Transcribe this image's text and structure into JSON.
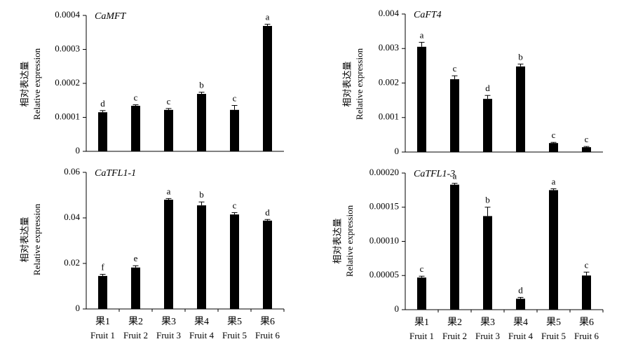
{
  "chart_data": [
    {
      "type": "bar",
      "title": "CaMFT",
      "ylabel": "相对表达量",
      "ylabel_sub": "Relative expression",
      "categories": [
        null,
        null,
        null,
        null,
        null,
        null
      ],
      "values": [
        0.000115,
        0.000134,
        0.000122,
        0.000169,
        0.000122,
        0.000369
      ],
      "errors": [
        5e-06,
        3e-06,
        4e-06,
        5e-06,
        1.3e-05,
        5e-06
      ],
      "annotations": [
        "d",
        "c",
        "c",
        "b",
        "c",
        "a"
      ],
      "color": "#000000",
      "ylim": [
        0,
        0.0004
      ],
      "yticks": [
        0,
        0.0001,
        0.0002,
        0.0003,
        0.0004
      ]
    },
    {
      "type": "bar",
      "title": "CaFT4",
      "ylabel": "相对表达量",
      "ylabel_sub": "Relative expression",
      "categories": [
        null,
        null,
        null,
        null,
        null,
        null
      ],
      "values": [
        0.00305,
        0.00211,
        0.00154,
        0.00248,
        0.00026,
        0.00014
      ],
      "errors": [
        0.00013,
        0.0001,
        0.0001,
        7e-05,
        2e-05,
        2e-05
      ],
      "annotations": [
        "a",
        "c",
        "d",
        "b",
        "c",
        "c"
      ],
      "color": "#000000",
      "ylim": [
        0,
        0.004
      ],
      "yticks": [
        0,
        0.001,
        0.002,
        0.003,
        0.004
      ]
    },
    {
      "type": "bar",
      "title": "CaTFL1-1",
      "ylabel": "相对表达量",
      "ylabel_sub": "Relative expression",
      "categories": [
        "果1",
        "果2",
        "果3",
        "果4",
        "果5",
        "果6"
      ],
      "category_subtitles": [
        "Fruit 1",
        "Fruit 2",
        "Fruit 3",
        "Fruit 4",
        "Fruit 5",
        "Fruit 6"
      ],
      "values": [
        0.0145,
        0.0182,
        0.048,
        0.0455,
        0.0415,
        0.0388
      ],
      "errors": [
        0.0007,
        0.0008,
        0.0005,
        0.0015,
        0.0008,
        0.0005
      ],
      "annotations": [
        "f",
        "e",
        "a",
        "b",
        "c",
        "d"
      ],
      "color": "#000000",
      "ylim": [
        0,
        0.06
      ],
      "yticks": [
        0,
        0.02,
        0.04,
        0.06
      ]
    },
    {
      "type": "bar",
      "title": "CaTFL1-3",
      "ylabel": "相对表达量",
      "ylabel_sub": "Relative expression",
      "categories": [
        "果1",
        "果2",
        "果3",
        "果4",
        "果5",
        "果6"
      ],
      "category_subtitles": [
        "Fruit 1",
        "Fruit 2",
        "Fruit 3",
        "Fruit 4",
        "Fruit 5",
        "Fruit 6"
      ],
      "values": [
        4.7e-05,
        0.000183,
        0.000137,
        1.6e-05,
        0.000175,
        5e-05
      ],
      "errors": [
        2e-06,
        2e-06,
        1.3e-05,
        2e-06,
        2e-06,
        5e-06
      ],
      "annotations": [
        "c",
        "a",
        "b",
        "d",
        "a",
        "c"
      ],
      "color": "#000000",
      "ylim": [
        0,
        0.0002
      ],
      "yticks": [
        0,
        5e-05,
        {
          "value": 0.0001,
          "label": "0.00010"
        },
        {
          "value": 0.00015,
          "label": "0.00015"
        },
        {
          "value": 0.0002,
          "label": "0.00020"
        }
      ]
    }
  ]
}
